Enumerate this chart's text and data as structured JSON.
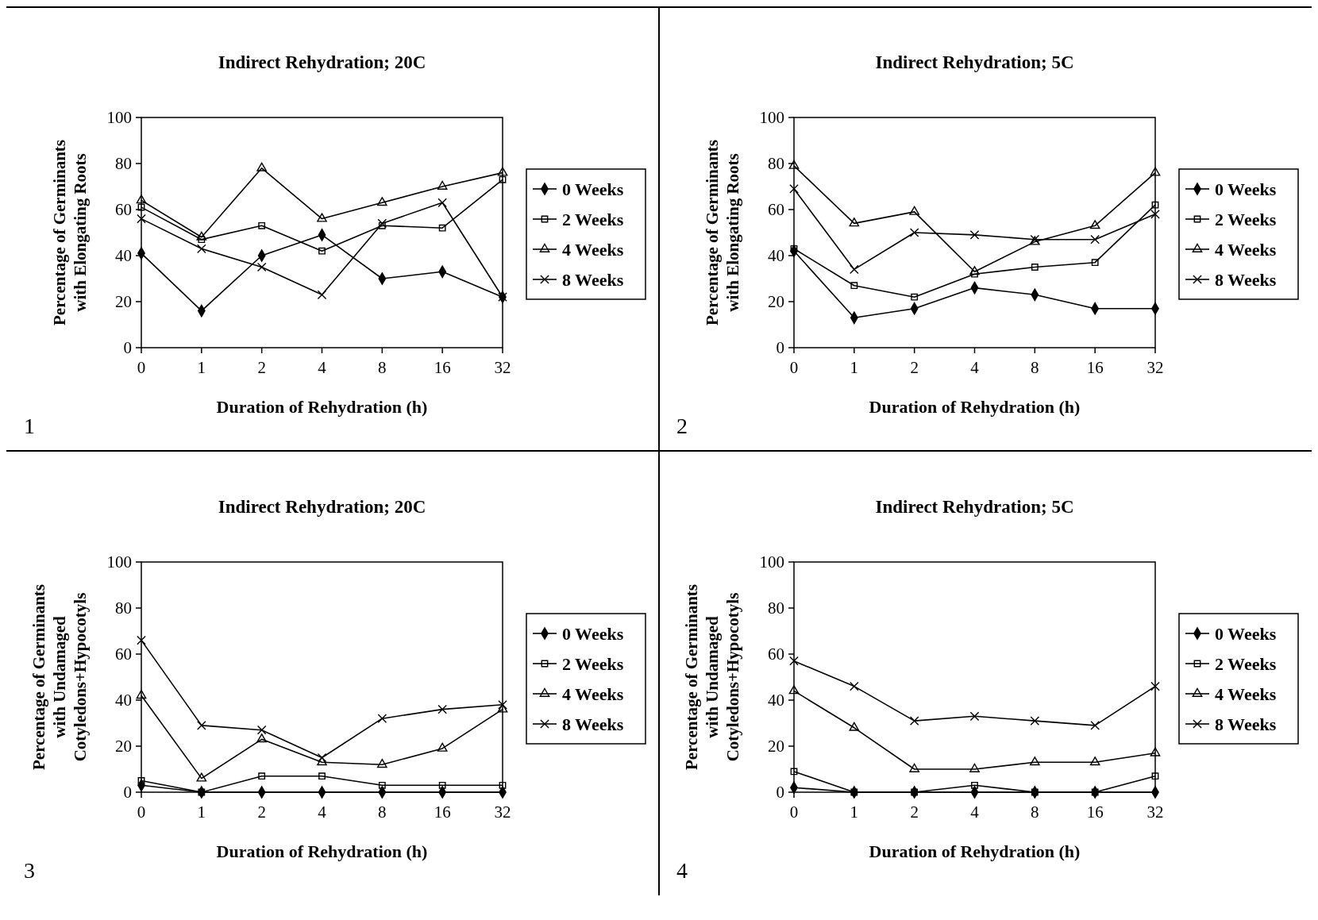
{
  "chart_data": [
    {
      "type": "line",
      "title": "Indirect Rehydration; 20C",
      "xlabel": "Duration of Rehydration (h)",
      "ylabel": "Percentage of Germinants\nwith Elongating Roots",
      "categories": [
        "0",
        "1",
        "2",
        "4",
        "8",
        "16",
        "32"
      ],
      "ylim": [
        0,
        100
      ],
      "yticks": [
        0,
        20,
        40,
        60,
        80,
        100
      ],
      "legend": "right",
      "grid": false,
      "annotations": [
        "1"
      ],
      "series": [
        {
          "name": "0 Weeks",
          "color": "#000000",
          "marker": "diamond",
          "values": [
            41,
            16,
            40,
            49,
            30,
            33,
            22
          ]
        },
        {
          "name": "2 Weeks",
          "color": "#000000",
          "marker": "square",
          "values": [
            61,
            47,
            53,
            42,
            53,
            52,
            73
          ]
        },
        {
          "name": "4 Weeks",
          "color": "#000000",
          "marker": "triangle",
          "values": [
            64,
            48,
            78,
            56,
            63,
            70,
            76
          ]
        },
        {
          "name": "8 Weeks",
          "color": "#000000",
          "marker": "cross",
          "values": [
            56,
            43,
            35,
            23,
            54,
            63,
            22
          ]
        }
      ]
    },
    {
      "type": "line",
      "title": "Indirect Rehydration; 5C",
      "xlabel": "Duration of Rehydration (h)",
      "ylabel": "Percentage of Germinants\nwith Elongating Roots",
      "categories": [
        "0",
        "1",
        "2",
        "4",
        "8",
        "16",
        "32"
      ],
      "ylim": [
        0,
        100
      ],
      "yticks": [
        0,
        20,
        40,
        60,
        80,
        100
      ],
      "legend": "right",
      "grid": false,
      "annotations": [
        "2"
      ],
      "series": [
        {
          "name": "0 Weeks",
          "color": "#000000",
          "marker": "diamond",
          "values": [
            42,
            13,
            17,
            26,
            23,
            17,
            17
          ]
        },
        {
          "name": "2 Weeks",
          "color": "#000000",
          "marker": "square",
          "values": [
            43,
            27,
            22,
            32,
            35,
            37,
            62
          ]
        },
        {
          "name": "4 Weeks",
          "color": "#000000",
          "marker": "triangle",
          "values": [
            79,
            54,
            59,
            33,
            46,
            53,
            76
          ]
        },
        {
          "name": "8 Weeks",
          "color": "#000000",
          "marker": "cross",
          "values": [
            69,
            34,
            50,
            49,
            47,
            47,
            58
          ]
        }
      ]
    },
    {
      "type": "line",
      "title": "Indirect Rehydration; 20C",
      "xlabel": "Duration of Rehydration (h)",
      "ylabel": "Percentage of Germinants\nwith Undamaged\nCotyledons+Hypocotyls",
      "categories": [
        "0",
        "1",
        "2",
        "4",
        "8",
        "16",
        "32"
      ],
      "ylim": [
        0,
        100
      ],
      "yticks": [
        0,
        20,
        40,
        60,
        80,
        100
      ],
      "legend": "right",
      "grid": false,
      "annotations": [
        "3"
      ],
      "series": [
        {
          "name": "0 Weeks",
          "color": "#000000",
          "marker": "diamond",
          "values": [
            3,
            0,
            0,
            0,
            0,
            0,
            0
          ]
        },
        {
          "name": "2 Weeks",
          "color": "#000000",
          "marker": "square",
          "values": [
            5,
            0,
            7,
            7,
            3,
            3,
            3
          ]
        },
        {
          "name": "4 Weeks",
          "color": "#000000",
          "marker": "triangle",
          "values": [
            42,
            6,
            23,
            13,
            12,
            19,
            36
          ]
        },
        {
          "name": "8 Weeks",
          "color": "#000000",
          "marker": "cross",
          "values": [
            66,
            29,
            27,
            15,
            32,
            36,
            38
          ]
        }
      ]
    },
    {
      "type": "line",
      "title": "Indirect Rehydration; 5C",
      "xlabel": "Duration of Rehydration (h)",
      "ylabel": "Percentage of Germinants\nwith Undamaged\nCotyledons+Hypocotyls",
      "categories": [
        "0",
        "1",
        "2",
        "4",
        "8",
        "16",
        "32"
      ],
      "ylim": [
        0,
        100
      ],
      "yticks": [
        0,
        20,
        40,
        60,
        80,
        100
      ],
      "legend": "right",
      "grid": false,
      "annotations": [
        "4"
      ],
      "series": [
        {
          "name": "0 Weeks",
          "color": "#000000",
          "marker": "diamond",
          "values": [
            2,
            0,
            0,
            0,
            0,
            0,
            0
          ]
        },
        {
          "name": "2 Weeks",
          "color": "#000000",
          "marker": "square",
          "values": [
            9,
            0,
            0,
            3,
            0,
            0,
            7
          ]
        },
        {
          "name": "4 Weeks",
          "color": "#000000",
          "marker": "triangle",
          "values": [
            44,
            28,
            10,
            10,
            13,
            13,
            17
          ]
        },
        {
          "name": "8 Weeks",
          "color": "#000000",
          "marker": "cross",
          "values": [
            57,
            46,
            31,
            33,
            31,
            29,
            46
          ]
        }
      ]
    }
  ]
}
